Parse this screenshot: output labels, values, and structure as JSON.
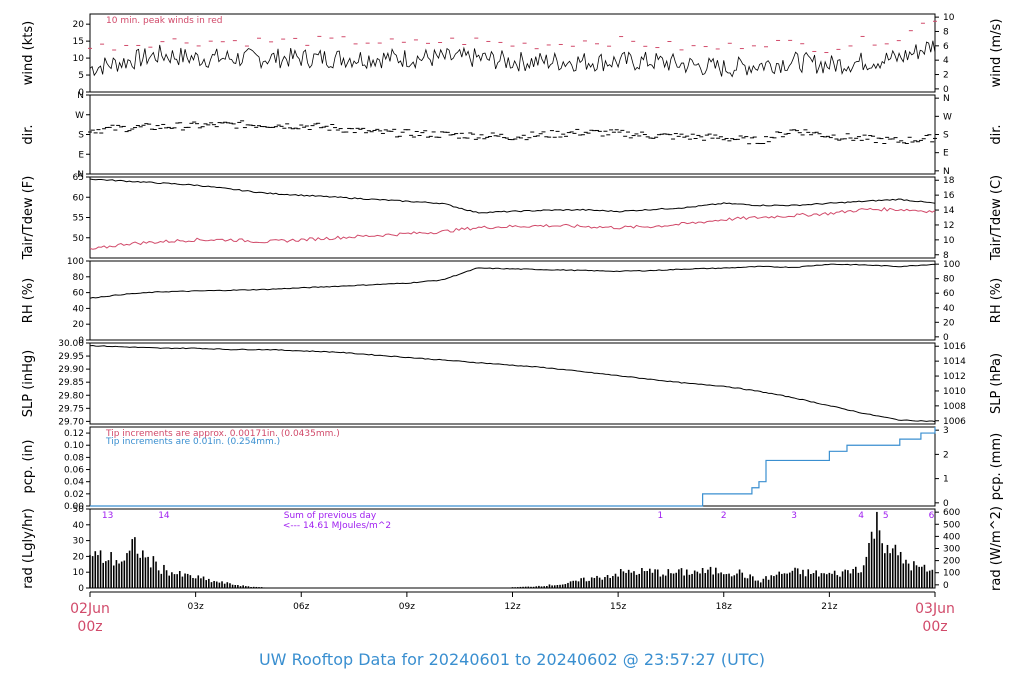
{
  "footer_title": "UW Rooftop Data for 20240601  to  20240602 @ 23:57:27  (UTC)",
  "colors": {
    "primary": "#000000",
    "dewpoint": "#d14a6a",
    "gust": "#d14a6a",
    "precip": "#3a8fd0",
    "note_purple": "#a020f0"
  },
  "x_axis": {
    "ticks": [
      "03z",
      "06z",
      "09z",
      "12z",
      "15z",
      "18z",
      "21z"
    ],
    "start_date": "02Jun",
    "start_hour": "00z",
    "end_date": "03Jun",
    "end_hour": "00z"
  },
  "chart_data": [
    {
      "type": "line",
      "name": "wind",
      "ylabel_left": "wind (kts)",
      "ylabel_right": "wind (m/s)",
      "ylim": [
        0,
        23
      ],
      "yticks_left": [
        "0",
        "5",
        "10",
        "15",
        "20"
      ],
      "yticks_right": [
        "0",
        "2",
        "4",
        "6",
        "8",
        "10"
      ],
      "annotation": "10 min. peak winds in red",
      "x_hours": [
        0,
        1,
        2,
        3,
        4,
        5,
        6,
        7,
        8,
        9,
        10,
        11,
        12,
        13,
        14,
        15,
        16,
        17,
        18,
        19,
        20,
        21,
        22,
        23,
        24
      ],
      "values": [
        7,
        9,
        11,
        10,
        10,
        10,
        10,
        10,
        10,
        10,
        10,
        10,
        9,
        9,
        9,
        9,
        9,
        8,
        7,
        8,
        9,
        8,
        9,
        10,
        14
      ],
      "gusts": [
        13,
        14,
        15,
        15,
        15,
        15,
        15,
        15,
        15,
        14,
        15,
        15,
        14,
        14,
        15,
        15,
        14,
        13,
        13,
        15,
        14,
        13,
        15,
        16,
        22
      ]
    },
    {
      "type": "scatter",
      "name": "dir",
      "ylabel_left": "dir.",
      "ylabel_right": "dir.",
      "ylim": [
        0,
        360
      ],
      "yticks_left": [
        "N",
        "E",
        "S",
        "W",
        "N"
      ],
      "yticks_right": [
        "N",
        "E",
        "S",
        "W",
        "N"
      ],
      "x_hours": [
        0,
        1,
        2,
        3,
        4,
        5,
        6,
        7,
        8,
        9,
        10,
        11,
        12,
        13,
        14,
        15,
        16,
        17,
        18,
        19,
        20,
        21,
        22,
        23,
        24
      ],
      "values": [
        200,
        210,
        215,
        220,
        225,
        225,
        220,
        210,
        190,
        185,
        180,
        175,
        170,
        180,
        190,
        185,
        175,
        170,
        165,
        150,
        200,
        175,
        160,
        150,
        165
      ]
    },
    {
      "type": "line",
      "name": "temp",
      "ylabel_left": "Tair/Tdew (F)",
      "ylabel_right": "Tair/Tdew (C)",
      "ylim": [
        45,
        65
      ],
      "yticks_left": [
        "50",
        "55",
        "60",
        "65"
      ],
      "yticks_right": [
        "8",
        "10",
        "12",
        "14",
        "16",
        "18"
      ],
      "x_hours": [
        0,
        1,
        2,
        3,
        4,
        5,
        6,
        7,
        8,
        9,
        10,
        11,
        12,
        13,
        14,
        15,
        16,
        17,
        18,
        19,
        20,
        21,
        22,
        23,
        24
      ],
      "series": [
        {
          "name": "Tair",
          "values": [
            64.5,
            64,
            63.5,
            63,
            62,
            61,
            60.5,
            60,
            59.5,
            59,
            58.5,
            56.2,
            56.5,
            56.8,
            56.9,
            56.5,
            57,
            57.5,
            58.5,
            58,
            58,
            58.5,
            59,
            59.5,
            58.5
          ]
        },
        {
          "name": "Tdew",
          "values": [
            47,
            48.5,
            49,
            49.5,
            49.5,
            49,
            49.5,
            50,
            50.5,
            51,
            51.5,
            52.5,
            52.8,
            53,
            52.8,
            52.5,
            52.8,
            53.5,
            54.5,
            55,
            55.5,
            56,
            57,
            57,
            56.5
          ]
        }
      ]
    },
    {
      "type": "line",
      "name": "rh",
      "ylabel_left": "RH (%)",
      "ylabel_right": "RH (%)",
      "ylim": [
        0,
        100
      ],
      "yticks_left": [
        "0",
        "20",
        "40",
        "60",
        "80",
        "100"
      ],
      "yticks_right": [
        "0",
        "20",
        "40",
        "60",
        "80",
        "100"
      ],
      "x_hours": [
        0,
        1,
        2,
        3,
        4,
        5,
        6,
        7,
        8,
        9,
        10,
        11,
        12,
        13,
        14,
        15,
        16,
        17,
        18,
        19,
        20,
        21,
        22,
        23,
        24
      ],
      "values": [
        53,
        58,
        61,
        62,
        63,
        64,
        66,
        68,
        70,
        72,
        76,
        91,
        90,
        89,
        88,
        87,
        88,
        90,
        91,
        93,
        92,
        96,
        95,
        93,
        96
      ]
    },
    {
      "type": "line",
      "name": "slp",
      "ylabel_left": "SLP (inHg)",
      "ylabel_right": "SLP (hPa)",
      "ylim": [
        29.69,
        30.0
      ],
      "yticks_left": [
        "29.70",
        "29.75",
        "29.80",
        "29.85",
        "29.90",
        "29.95",
        "30.00"
      ],
      "yticks_right": [
        "1006",
        "1008",
        "1010",
        "1012",
        "1014",
        "1016"
      ],
      "x_hours": [
        0,
        1,
        2,
        3,
        4,
        5,
        6,
        7,
        8,
        9,
        10,
        11,
        12,
        13,
        14,
        15,
        16,
        17,
        18,
        19,
        20,
        21,
        22,
        23,
        24
      ],
      "values": [
        29.99,
        29.985,
        29.98,
        29.98,
        29.975,
        29.975,
        29.97,
        29.965,
        29.955,
        29.945,
        29.935,
        29.925,
        29.915,
        29.905,
        29.89,
        29.875,
        29.86,
        29.845,
        29.835,
        29.815,
        29.79,
        29.76,
        29.73,
        29.705,
        29.7
      ]
    },
    {
      "type": "line",
      "name": "pcp",
      "ylabel_left": "pcp. (in)",
      "ylabel_right": "pcp. (mm)",
      "ylim": [
        0,
        0.13
      ],
      "yticks_left": [
        "0.00",
        "0.02",
        "0.04",
        "0.06",
        "0.08",
        "0.10",
        "0.12"
      ],
      "yticks_right": [
        "0",
        "1",
        "2",
        "3"
      ],
      "notes": [
        "Tip increments are approx. 0.00171in. (0.0435mm.)",
        "Tip increments are 0.01in. (0.254mm.)"
      ],
      "x_hours": [
        0,
        17.4,
        17.4,
        18.7,
        18.8,
        19.0,
        19.2,
        21.0,
        21.5,
        23.0,
        23.6,
        24
      ],
      "values": [
        0,
        0,
        0.02,
        0.02,
        0.03,
        0.04,
        0.075,
        0.09,
        0.1,
        0.11,
        0.12,
        0.13
      ]
    },
    {
      "type": "bar",
      "name": "rad",
      "ylabel_left": "rad (Lgly/hr)",
      "ylabel_right": "rad (W/m^2)",
      "ylim": [
        0,
        50
      ],
      "yticks_left": [
        "0",
        "10",
        "20",
        "30",
        "40",
        "50"
      ],
      "yticks_right": [
        "0",
        "100",
        "200",
        "300",
        "400",
        "500",
        "600"
      ],
      "annotations": [
        "Sum of previous day",
        "<--- 14.61 MJoules/m^2"
      ],
      "day_markers": [
        "13",
        "14",
        "1",
        "2",
        "3",
        "4",
        "5",
        "6"
      ],
      "x_hours": [
        0,
        0.5,
        1,
        1.3,
        1.5,
        2,
        2.5,
        3,
        3.5,
        4,
        4.5,
        5,
        12,
        12.5,
        13,
        13.5,
        14,
        14.5,
        15,
        15.5,
        16,
        16.5,
        17,
        17.5,
        18,
        18.5,
        19,
        19.5,
        20,
        20.5,
        21,
        21.5,
        22,
        22.3,
        22.6,
        23,
        23.5,
        24
      ],
      "values": [
        24,
        22,
        20,
        33,
        24,
        15,
        10,
        8,
        5,
        3,
        1,
        0.5,
        0.5,
        1,
        2,
        3,
        6,
        8,
        11,
        12,
        12,
        11,
        12,
        12,
        13,
        11,
        5,
        10,
        12,
        11,
        10,
        12,
        17,
        49,
        35,
        22,
        15,
        12
      ]
    }
  ]
}
